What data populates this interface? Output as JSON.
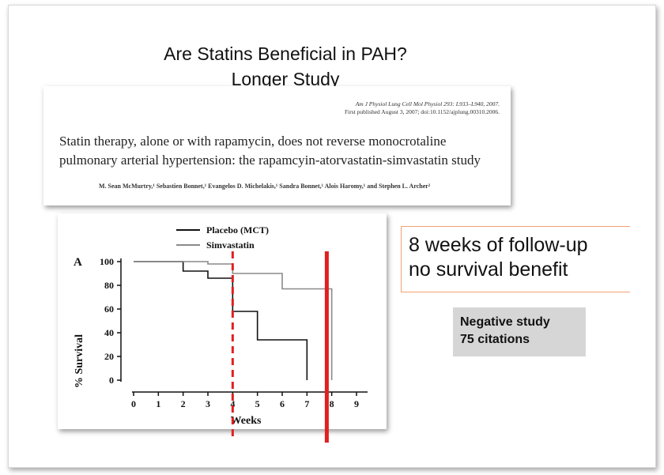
{
  "slide": {
    "title_line1": "Are Statins Beneficial in PAH?",
    "title_line2": "Longer Study"
  },
  "paper": {
    "journal": "Am J Physiol Lung Cell Mol Physiol 293: L933–L940, 2007.",
    "published": "First published August 3, 2007; doi:10.1152/ajplung.00310.2006.",
    "title": "Statin therapy, alone or with rapamycin, does not reverse monocrotaline pulmonary arterial hypertension: the rapamcyin-atorvastatin-simvastatin study",
    "authors": "M. Sean McMurtry,¹ Sebastien Bonnet,¹ Evangelos D. Michelakis,¹ Sandra Bonnet,¹ Alois Haromy,¹ and Stephen L. Archer²"
  },
  "callout": {
    "line1": "8 weeks of follow-up",
    "line2": "no survival benefit"
  },
  "negative_box": {
    "line1": "Negative study",
    "line2": "75 citations"
  },
  "colors": {
    "placebo": "#111111",
    "simvastatin": "#8a8a8a",
    "marker": "#e02020",
    "callout_border": "#f0a070",
    "neg_bg": "#d6d6d6"
  },
  "chart_data": {
    "type": "line",
    "panel_label": "A",
    "xlabel": "Weeks",
    "ylabel": "% Survival",
    "xlim": [
      0,
      9
    ],
    "ylim": [
      0,
      100
    ],
    "x_ticks": [
      0,
      1,
      2,
      3,
      4,
      5,
      6,
      7,
      8,
      9
    ],
    "y_ticks": [
      0,
      20,
      40,
      60,
      80,
      100
    ],
    "legend_position": "top",
    "series": [
      {
        "name": "Placebo (MCT)",
        "step": true,
        "x": [
          0,
          2,
          3,
          4,
          5,
          7,
          7
        ],
        "y": [
          100,
          92,
          86,
          58,
          34,
          34,
          0
        ]
      },
      {
        "name": "Simvastatin",
        "step": true,
        "x": [
          0,
          3,
          4,
          6,
          8,
          8
        ],
        "y": [
          100,
          98,
          90,
          77,
          77,
          0
        ]
      }
    ],
    "annotations": [
      {
        "type": "vertical-line",
        "x": 4,
        "style": "dashed",
        "color": "#e02020"
      },
      {
        "type": "vertical-line",
        "x": 7.8,
        "style": "solid",
        "color": "#e02020"
      }
    ]
  }
}
